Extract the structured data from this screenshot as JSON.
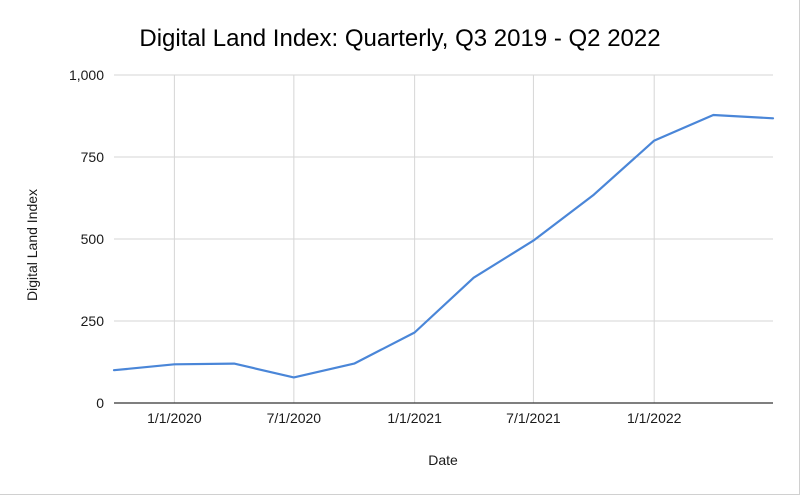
{
  "chart_data": {
    "type": "line",
    "title": "Digital Land Index: Quarterly, Q3 2019 - Q2 2022",
    "xlabel": "Date",
    "ylabel": "Digital Land Index",
    "x_axis_kind": "date",
    "xlim": [
      "2019-10-01",
      "2022-07-01"
    ],
    "ylim": [
      0,
      1000
    ],
    "y_ticks": [
      0,
      250,
      500,
      750,
      1000
    ],
    "y_tick_labels": [
      "0",
      "250",
      "500",
      "750",
      "1,000"
    ],
    "x_ticks": [
      "2020-01-01",
      "2020-07-01",
      "2021-01-01",
      "2021-07-01",
      "2022-01-01"
    ],
    "x_tick_labels": [
      "1/1/2020",
      "7/1/2020",
      "1/1/2021",
      "7/1/2021",
      "1/1/2022"
    ],
    "grid": true,
    "legend": "none",
    "series": [
      {
        "color": "#4a86d8",
        "points": [
          {
            "x": "2019-10-01",
            "y": 100
          },
          {
            "x": "2020-01-01",
            "y": 118
          },
          {
            "x": "2020-04-01",
            "y": 120
          },
          {
            "x": "2020-07-01",
            "y": 78
          },
          {
            "x": "2020-10-01",
            "y": 120
          },
          {
            "x": "2021-01-01",
            "y": 215
          },
          {
            "x": "2021-04-01",
            "y": 382
          },
          {
            "x": "2021-07-01",
            "y": 495
          },
          {
            "x": "2021-10-01",
            "y": 635
          },
          {
            "x": "2022-01-01",
            "y": 800
          },
          {
            "x": "2022-04-01",
            "y": 878
          },
          {
            "x": "2022-07-01",
            "y": 868
          }
        ]
      }
    ]
  },
  "colors": {
    "line": "#4a86d8",
    "grid": "#d6d6d6",
    "axis": "#333333",
    "text": "#1a1a1a"
  }
}
